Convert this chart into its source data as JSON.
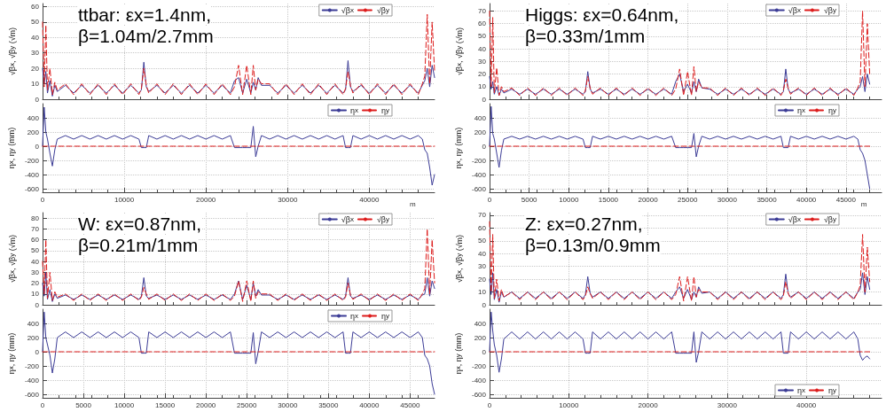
{
  "chart_data": [
    {
      "type": "line",
      "annotations": [
        "ttbar: εx=1.4nm,",
        "β=1.04m/2.7mm"
      ],
      "ylabel": "√β$_{x}$, √β$_{y}$ (√m)",
      "xlim": [
        0,
        48000
      ],
      "xticks": [
        0,
        10000,
        20000,
        30000,
        40000
      ],
      "ylim": [
        0,
        62
      ],
      "yticks": [
        0,
        10,
        20,
        30,
        40,
        50,
        60
      ],
      "tick_labels": "y",
      "grid": true,
      "legend": "top right",
      "marker": "none",
      "x": [
        0,
        200,
        400,
        600,
        900,
        1200,
        1500,
        1800,
        2800,
        3800,
        4800,
        5800,
        6800,
        7800,
        8800,
        9800,
        10800,
        11800,
        12100,
        12400,
        12700,
        13000,
        14000,
        15000,
        16000,
        17000,
        18000,
        19000,
        20000,
        21000,
        22000,
        23000,
        23500,
        24000,
        24500,
        25000,
        25500,
        25800,
        26100,
        26400,
        26800,
        27800,
        28800,
        29800,
        30800,
        31800,
        32800,
        33800,
        34800,
        35800,
        36800,
        37100,
        37400,
        37700,
        38000,
        39000,
        40000,
        41000,
        42000,
        43000,
        44000,
        45000,
        46000,
        46500,
        46800,
        47100,
        47400,
        47700,
        48000
      ],
      "series": [
        {
          "name": "√β$_{x}$",
          "color": "#3c3c96",
          "line_style": "solid",
          "values": [
            20,
            10,
            18,
            4,
            12,
            2,
            9,
            5,
            9,
            4,
            9,
            4,
            9,
            4,
            9,
            4,
            9,
            4,
            6,
            24,
            8,
            5,
            9,
            4,
            9,
            4,
            9,
            4,
            9,
            4,
            9,
            4,
            12,
            14,
            4,
            13,
            4,
            11,
            6,
            14,
            9,
            9,
            4,
            9,
            4,
            9,
            4,
            9,
            4,
            9,
            4,
            6,
            25,
            8,
            5,
            9,
            4,
            9,
            4,
            9,
            4,
            9,
            4,
            9,
            12,
            20,
            8,
            22,
            14
          ]
        },
        {
          "name": "√β$_{y}$",
          "color": "#dd1c1c",
          "line_style": "dashed",
          "values": [
            50,
            8,
            48,
            6,
            20,
            3,
            11,
            6,
            10,
            3,
            10,
            3,
            10,
            3,
            10,
            3,
            10,
            3,
            7,
            20,
            9,
            4,
            10,
            3,
            10,
            3,
            10,
            3,
            10,
            3,
            10,
            3,
            8,
            22,
            3,
            22,
            3,
            22,
            6,
            13,
            10,
            10,
            3,
            10,
            3,
            10,
            3,
            10,
            3,
            10,
            3,
            7,
            18,
            9,
            4,
            10,
            3,
            10,
            3,
            10,
            3,
            10,
            3,
            10,
            15,
            55,
            10,
            50,
            18
          ]
        }
      ]
    },
    {
      "type": "line",
      "xlabel": "m",
      "ylabel": "η$_{x}$, η$_{y}$ (mm)",
      "xlim": [
        0,
        48000
      ],
      "xticks": [
        0,
        10000,
        20000,
        30000,
        40000
      ],
      "ylim": [
        -650,
        600
      ],
      "yticks": [
        -600,
        -400,
        -200,
        0,
        200,
        400
      ],
      "grid": true,
      "legend": "top right",
      "marker": "none",
      "x": [
        0,
        200,
        400,
        600,
        900,
        1200,
        1500,
        1800,
        2800,
        3800,
        4800,
        5800,
        6800,
        7800,
        8800,
        9800,
        10800,
        11800,
        12100,
        12400,
        12700,
        13000,
        14000,
        15000,
        16000,
        17000,
        18000,
        19000,
        20000,
        21000,
        22000,
        23000,
        23500,
        24000,
        24500,
        25000,
        25500,
        25800,
        26100,
        26400,
        26800,
        27800,
        28800,
        29800,
        30800,
        31800,
        32800,
        33800,
        34800,
        35800,
        36800,
        37100,
        37400,
        37700,
        38000,
        39000,
        40000,
        41000,
        42000,
        43000,
        44000,
        45000,
        46000,
        46500,
        46800,
        47100,
        47400,
        47700,
        48000
      ],
      "series": [
        {
          "name": "η$_{x}$",
          "color": "#3c3c96",
          "line_style": "solid",
          "values": [
            0,
            550,
            200,
            100,
            -100,
            -280,
            -50,
            100,
            150,
            100,
            150,
            100,
            150,
            100,
            150,
            100,
            150,
            100,
            -20,
            -20,
            -20,
            150,
            100,
            150,
            100,
            150,
            100,
            150,
            100,
            150,
            100,
            150,
            -20,
            -20,
            -20,
            -20,
            -20,
            280,
            -150,
            0,
            150,
            100,
            150,
            100,
            150,
            100,
            150,
            100,
            150,
            100,
            150,
            -20,
            -20,
            -20,
            150,
            100,
            150,
            100,
            150,
            100,
            150,
            100,
            150,
            100,
            -50,
            -100,
            -300,
            -550,
            -400
          ]
        },
        {
          "name": "η$_{y}$",
          "color": "#dd1c1c",
          "line_style": "dashed",
          "values": [
            0,
            0,
            0,
            0,
            0,
            0,
            0,
            0,
            0,
            0,
            0,
            0,
            0,
            0,
            0,
            0,
            0,
            0,
            0,
            0,
            0,
            0,
            0,
            0,
            0,
            0,
            0,
            0,
            0,
            0,
            0,
            0,
            0,
            0,
            0,
            0,
            0,
            0,
            0,
            0,
            0,
            0,
            0,
            0,
            0,
            0,
            0,
            0,
            0,
            0,
            0,
            0,
            0,
            0,
            0,
            0,
            0,
            0,
            0,
            0,
            0,
            0,
            0,
            0,
            0,
            0,
            0,
            0,
            0
          ]
        }
      ]
    },
    {
      "type": "line",
      "annotations": [
        "Higgs: εx=0.64nm,",
        "β=0.33m/1mm"
      ],
      "ylabel": "√β$_{x}$, √β$_{y}$ (√m)",
      "xlim": [
        0,
        49500
      ],
      "xticks": [
        0,
        5000,
        10000,
        15000,
        20000,
        25000,
        30000,
        35000,
        40000,
        45000
      ],
      "ylim": [
        0,
        76
      ],
      "yticks": [
        0,
        10,
        20,
        30,
        40,
        50,
        60,
        70
      ],
      "tick_labels": "y",
      "grid": true,
      "legend": "top right",
      "marker": "none",
      "x": [
        0,
        200,
        400,
        600,
        900,
        1200,
        1500,
        1800,
        2800,
        3800,
        4800,
        5800,
        6800,
        7800,
        8800,
        9800,
        10800,
        11800,
        12100,
        12400,
        12700,
        13000,
        14000,
        15000,
        16000,
        17000,
        18000,
        19000,
        20000,
        21000,
        22000,
        23000,
        23500,
        24000,
        24500,
        25000,
        25500,
        25800,
        26100,
        26400,
        26800,
        27800,
        28800,
        29800,
        30800,
        31800,
        32800,
        33800,
        34800,
        35800,
        36800,
        37100,
        37400,
        37700,
        38000,
        39000,
        40000,
        41000,
        42000,
        43000,
        44000,
        45000,
        46000,
        46500,
        46800,
        47100,
        47400,
        47700,
        48000
      ],
      "series": [
        {
          "name": "√β$_{x}$",
          "color": "#3c3c96",
          "line_style": "solid",
          "values": [
            18,
            8,
            14,
            4,
            10,
            3,
            8,
            5,
            8,
            4,
            8,
            4,
            8,
            4,
            8,
            4,
            8,
            4,
            6,
            22,
            8,
            5,
            8,
            4,
            8,
            4,
            8,
            4,
            8,
            4,
            8,
            4,
            14,
            20,
            6,
            12,
            5,
            14,
            6,
            16,
            9,
            8,
            4,
            8,
            4,
            8,
            4,
            8,
            4,
            8,
            4,
            6,
            24,
            8,
            5,
            8,
            4,
            8,
            4,
            8,
            4,
            8,
            4,
            8,
            10,
            18,
            6,
            20,
            12
          ]
        },
        {
          "name": "√β$_{y}$",
          "color": "#dd1c1c",
          "line_style": "dashed",
          "values": [
            70,
            10,
            65,
            5,
            25,
            3,
            10,
            6,
            9,
            3,
            9,
            3,
            9,
            3,
            9,
            3,
            9,
            3,
            7,
            18,
            9,
            4,
            9,
            3,
            9,
            3,
            9,
            3,
            9,
            3,
            9,
            3,
            8,
            24,
            3,
            22,
            3,
            26,
            6,
            14,
            9,
            9,
            3,
            9,
            3,
            9,
            3,
            9,
            3,
            9,
            3,
            7,
            16,
            9,
            4,
            9,
            3,
            9,
            3,
            9,
            3,
            9,
            3,
            9,
            14,
            70,
            10,
            60,
            20
          ]
        }
      ]
    },
    {
      "type": "line",
      "xlabel": "m",
      "ylabel": "η$_{x}$, η$_{y}$ (mm)",
      "xlim": [
        0,
        49500
      ],
      "xticks": [
        0,
        5000,
        10000,
        15000,
        20000,
        25000,
        30000,
        35000,
        40000,
        45000
      ],
      "ylim": [
        -650,
        600
      ],
      "yticks": [
        -600,
        -400,
        -200,
        0,
        200,
        400
      ],
      "grid": true,
      "legend": "top right",
      "marker": "none",
      "x": [
        0,
        200,
        400,
        600,
        900,
        1200,
        1500,
        1800,
        2800,
        3800,
        4800,
        5800,
        6800,
        7800,
        8800,
        9800,
        10800,
        11800,
        12100,
        12400,
        12700,
        13000,
        14000,
        15000,
        16000,
        17000,
        18000,
        19000,
        20000,
        21000,
        22000,
        23000,
        23500,
        24000,
        24500,
        25000,
        25500,
        25800,
        26100,
        26400,
        26800,
        27800,
        28800,
        29800,
        30800,
        31800,
        32800,
        33800,
        34800,
        35800,
        36800,
        37100,
        37400,
        37700,
        38000,
        39000,
        40000,
        41000,
        42000,
        43000,
        44000,
        45000,
        46000,
        46500,
        46800,
        47100,
        47400,
        47700,
        48000
      ],
      "series": [
        {
          "name": "η$_{x}$",
          "color": "#3c3c96",
          "line_style": "solid",
          "values": [
            0,
            560,
            180,
            100,
            -100,
            -300,
            -60,
            100,
            140,
            100,
            140,
            100,
            140,
            100,
            140,
            100,
            140,
            100,
            -20,
            -20,
            -20,
            140,
            100,
            140,
            100,
            140,
            100,
            140,
            100,
            140,
            100,
            140,
            -20,
            -20,
            -20,
            -20,
            -20,
            180,
            -150,
            0,
            140,
            100,
            140,
            100,
            140,
            100,
            140,
            100,
            140,
            100,
            140,
            -20,
            -20,
            -20,
            140,
            100,
            140,
            100,
            140,
            100,
            140,
            100,
            140,
            100,
            -50,
            -100,
            -200,
            -400,
            -600
          ]
        },
        {
          "name": "η$_{y}$",
          "color": "#dd1c1c",
          "line_style": "dashed",
          "values": [
            0,
            0,
            0,
            0,
            0,
            0,
            0,
            0,
            0,
            0,
            0,
            0,
            0,
            0,
            0,
            0,
            0,
            0,
            0,
            0,
            0,
            0,
            0,
            0,
            0,
            0,
            0,
            0,
            0,
            0,
            0,
            0,
            0,
            0,
            0,
            0,
            0,
            0,
            0,
            0,
            0,
            0,
            0,
            0,
            0,
            0,
            0,
            0,
            0,
            0,
            0,
            0,
            0,
            0,
            0,
            0,
            0,
            0,
            0,
            0,
            0,
            0,
            0,
            0,
            0,
            0,
            0,
            0,
            0
          ]
        }
      ]
    },
    {
      "type": "line",
      "annotations": [
        "W: εx=0.87nm,",
        "β=0.21m/1mm"
      ],
      "ylabel": "√β$_{x}$, √β$_{y}$ (√m)",
      "xlim": [
        0,
        48000
      ],
      "xticks": [
        0,
        5000,
        10000,
        15000,
        20000,
        25000,
        30000,
        35000,
        40000,
        45000
      ],
      "ylim": [
        0,
        85
      ],
      "yticks": [
        0,
        10,
        20,
        30,
        40,
        50,
        60,
        70,
        80
      ],
      "tick_labels": "y",
      "grid": true,
      "legend": "top right",
      "marker": "none",
      "x": [
        0,
        200,
        400,
        600,
        900,
        1200,
        1500,
        1800,
        2800,
        3800,
        4800,
        5800,
        6800,
        7800,
        8800,
        9800,
        10800,
        11800,
        12100,
        12400,
        12700,
        13000,
        14000,
        15000,
        16000,
        17000,
        18000,
        19000,
        20000,
        21000,
        22000,
        23000,
        23500,
        24000,
        24500,
        25000,
        25500,
        25800,
        26100,
        26400,
        26800,
        27800,
        28800,
        29800,
        30800,
        31800,
        32800,
        33800,
        34800,
        35800,
        36800,
        37100,
        37400,
        37700,
        38000,
        39000,
        40000,
        41000,
        42000,
        43000,
        44000,
        45000,
        46000,
        46500,
        46800,
        47100,
        47400,
        47700,
        48000
      ],
      "series": [
        {
          "name": "√β$_{x}$",
          "color": "#3c3c96",
          "line_style": "solid",
          "values": [
            20,
            8,
            30,
            5,
            14,
            3,
            10,
            6,
            9,
            5,
            9,
            5,
            9,
            5,
            9,
            5,
            9,
            5,
            8,
            25,
            8,
            6,
            9,
            5,
            9,
            5,
            9,
            5,
            9,
            5,
            9,
            5,
            10,
            22,
            5,
            18,
            5,
            20,
            8,
            14,
            9,
            9,
            5,
            9,
            5,
            9,
            5,
            9,
            5,
            9,
            5,
            8,
            25,
            8,
            6,
            9,
            5,
            9,
            5,
            9,
            5,
            9,
            5,
            9,
            10,
            25,
            8,
            22,
            15
          ]
        },
        {
          "name": "√β$_{y}$",
          "color": "#dd1c1c",
          "line_style": "dashed",
          "values": [
            40,
            10,
            60,
            6,
            30,
            4,
            12,
            7,
            10,
            4,
            10,
            4,
            10,
            4,
            10,
            4,
            10,
            4,
            7,
            16,
            10,
            5,
            10,
            4,
            10,
            4,
            10,
            4,
            10,
            4,
            10,
            4,
            8,
            22,
            3,
            22,
            3,
            22,
            6,
            12,
            10,
            10,
            4,
            10,
            4,
            10,
            4,
            10,
            4,
            10,
            4,
            7,
            20,
            9,
            5,
            10,
            4,
            10,
            4,
            10,
            4,
            10,
            4,
            10,
            15,
            70,
            10,
            60,
            20
          ]
        }
      ]
    },
    {
      "type": "line",
      "ylabel": "η$_{x}$, η$_{y}$ (mm)",
      "xlim": [
        0,
        48000
      ],
      "xticks": [
        0,
        5000,
        10000,
        15000,
        20000,
        25000,
        30000,
        35000,
        40000,
        45000
      ],
      "ylim": [
        -650,
        600
      ],
      "yticks": [
        -600,
        -400,
        -200,
        0,
        200,
        400
      ],
      "grid": true,
      "legend": "top right",
      "marker": "none",
      "x": [
        0,
        200,
        400,
        600,
        900,
        1200,
        1500,
        1800,
        2800,
        3800,
        4800,
        5800,
        6800,
        7800,
        8800,
        9800,
        10800,
        11800,
        12100,
        12400,
        12700,
        13000,
        14000,
        15000,
        16000,
        17000,
        18000,
        19000,
        20000,
        21000,
        22000,
        23000,
        23500,
        24000,
        24500,
        25000,
        25500,
        25800,
        26100,
        26400,
        26800,
        27800,
        28800,
        29800,
        30800,
        31800,
        32800,
        33800,
        34800,
        35800,
        36800,
        37100,
        37400,
        37700,
        38000,
        39000,
        40000,
        41000,
        42000,
        43000,
        44000,
        45000,
        46000,
        46500,
        46800,
        47100,
        47400,
        47700,
        48000
      ],
      "series": [
        {
          "name": "η$_{x}$",
          "color": "#3c3c96",
          "line_style": "solid",
          "values": [
            0,
            560,
            200,
            100,
            -50,
            -300,
            -100,
            200,
            280,
            200,
            280,
            200,
            280,
            200,
            280,
            200,
            280,
            200,
            -20,
            -20,
            -20,
            280,
            200,
            280,
            200,
            280,
            200,
            280,
            200,
            280,
            200,
            280,
            -20,
            -20,
            -20,
            -20,
            -20,
            270,
            -170,
            0,
            280,
            200,
            280,
            200,
            280,
            200,
            280,
            200,
            280,
            200,
            280,
            -20,
            -20,
            -20,
            280,
            200,
            280,
            200,
            280,
            200,
            280,
            200,
            280,
            200,
            -50,
            -100,
            -200,
            -450,
            -600
          ]
        },
        {
          "name": "η$_{y}$",
          "color": "#dd1c1c",
          "line_style": "dashed",
          "values": [
            0,
            0,
            0,
            0,
            0,
            0,
            0,
            0,
            0,
            0,
            0,
            0,
            0,
            0,
            0,
            0,
            0,
            0,
            0,
            0,
            0,
            0,
            0,
            0,
            0,
            0,
            0,
            0,
            0,
            0,
            0,
            0,
            0,
            0,
            0,
            0,
            0,
            0,
            0,
            0,
            0,
            0,
            0,
            0,
            0,
            0,
            0,
            0,
            0,
            0,
            0,
            0,
            0,
            0,
            0,
            0,
            0,
            0,
            0,
            0,
            0,
            0,
            0,
            0,
            0,
            0,
            0,
            0,
            0
          ]
        }
      ]
    },
    {
      "type": "line",
      "annotations": [
        "Z: εx=0.27nm,",
        "β=0.13m/0.9mm"
      ],
      "ylabel": "√β$_{x}$, √β$_{y}$ (√m)",
      "xlim": [
        0,
        49500
      ],
      "xticks": [
        0,
        10000,
        20000,
        30000,
        40000
      ],
      "ylim": [
        0,
        72
      ],
      "yticks": [
        0,
        10,
        20,
        30,
        40,
        50,
        60,
        70
      ],
      "tick_labels": "y",
      "grid": true,
      "legend": "top right",
      "marker": "none",
      "x": [
        0,
        200,
        400,
        600,
        900,
        1200,
        1500,
        1800,
        2800,
        3800,
        4800,
        5800,
        6800,
        7800,
        8800,
        9800,
        10800,
        11800,
        12100,
        12400,
        12700,
        13000,
        14000,
        15000,
        16000,
        17000,
        18000,
        19000,
        20000,
        21000,
        22000,
        23000,
        23500,
        24000,
        24500,
        25000,
        25500,
        25800,
        26100,
        26400,
        26800,
        27800,
        28800,
        29800,
        30800,
        31800,
        32800,
        33800,
        34800,
        35800,
        36800,
        37100,
        37400,
        37700,
        38000,
        39000,
        40000,
        41000,
        42000,
        43000,
        44000,
        45000,
        46000,
        46500,
        46800,
        47100,
        47400,
        47700,
        48000
      ],
      "series": [
        {
          "name": "√β$_{x}$",
          "color": "#3c3c96",
          "line_style": "solid",
          "values": [
            20,
            8,
            25,
            4,
            12,
            2,
            10,
            6,
            10,
            5,
            10,
            5,
            10,
            5,
            10,
            5,
            10,
            5,
            8,
            22,
            9,
            6,
            10,
            5,
            10,
            5,
            10,
            5,
            10,
            5,
            10,
            5,
            10,
            14,
            5,
            12,
            4,
            10,
            6,
            14,
            9,
            10,
            5,
            10,
            5,
            10,
            5,
            10,
            5,
            10,
            5,
            8,
            24,
            9,
            6,
            10,
            5,
            10,
            5,
            10,
            5,
            10,
            5,
            10,
            12,
            25,
            8,
            22,
            12
          ]
        },
        {
          "name": "√β$_{y}$",
          "color": "#dd1c1c",
          "line_style": "dashed",
          "values": [
            65,
            10,
            55,
            5,
            20,
            3,
            12,
            6,
            10,
            4,
            10,
            4,
            10,
            4,
            10,
            4,
            10,
            4,
            7,
            14,
            9,
            5,
            10,
            4,
            10,
            4,
            10,
            4,
            10,
            4,
            10,
            4,
            8,
            22,
            3,
            22,
            3,
            22,
            6,
            12,
            10,
            10,
            4,
            10,
            4,
            10,
            4,
            10,
            4,
            10,
            4,
            7,
            18,
            9,
            5,
            10,
            4,
            10,
            4,
            10,
            4,
            10,
            4,
            10,
            15,
            55,
            10,
            45,
            18
          ]
        }
      ]
    },
    {
      "type": "line",
      "ylabel": "η$_{x}$, η$_{y}$ (mm)",
      "xlim": [
        0,
        49500
      ],
      "xticks": [
        0,
        10000,
        20000,
        30000,
        40000
      ],
      "ylim": [
        -650,
        600
      ],
      "yticks": [
        -600,
        -400,
        -200,
        0,
        200,
        400
      ],
      "grid": true,
      "legend": "bottom right",
      "marker": "none",
      "x": [
        0,
        200,
        400,
        600,
        900,
        1200,
        1500,
        1800,
        2800,
        3800,
        4800,
        5800,
        6800,
        7800,
        8800,
        9800,
        10800,
        11800,
        12100,
        12400,
        12700,
        13000,
        14000,
        15000,
        16000,
        17000,
        18000,
        19000,
        20000,
        21000,
        22000,
        23000,
        23500,
        24000,
        24500,
        25000,
        25500,
        25800,
        26100,
        26400,
        26800,
        27800,
        28800,
        29800,
        30800,
        31800,
        32800,
        33800,
        34800,
        35800,
        36800,
        37100,
        37400,
        37700,
        38000,
        39000,
        40000,
        41000,
        42000,
        43000,
        44000,
        45000,
        46000,
        46500,
        46800,
        47100,
        47400,
        47700,
        48000
      ],
      "series": [
        {
          "name": "η$_{x}$",
          "color": "#3c3c96",
          "line_style": "solid",
          "values": [
            0,
            560,
            300,
            100,
            -50,
            -290,
            -100,
            180,
            280,
            180,
            280,
            180,
            280,
            180,
            280,
            180,
            280,
            180,
            -20,
            -20,
            -20,
            280,
            180,
            280,
            180,
            280,
            180,
            280,
            180,
            280,
            180,
            280,
            -20,
            -20,
            -20,
            -20,
            -20,
            280,
            -150,
            0,
            280,
            180,
            280,
            180,
            280,
            180,
            280,
            180,
            280,
            180,
            280,
            -20,
            -20,
            -20,
            280,
            180,
            280,
            180,
            280,
            180,
            280,
            180,
            280,
            180,
            -50,
            -120,
            -80,
            -60,
            -100
          ]
        },
        {
          "name": "η$_{y}$",
          "color": "#dd1c1c",
          "line_style": "dashed",
          "values": [
            0,
            0,
            0,
            0,
            0,
            0,
            0,
            0,
            0,
            0,
            0,
            0,
            0,
            0,
            0,
            0,
            0,
            0,
            0,
            0,
            0,
            0,
            0,
            0,
            0,
            0,
            0,
            0,
            0,
            0,
            0,
            0,
            0,
            0,
            0,
            0,
            0,
            0,
            0,
            0,
            0,
            0,
            0,
            0,
            0,
            0,
            0,
            0,
            0,
            0,
            0,
            0,
            0,
            0,
            0,
            0,
            0,
            0,
            0,
            0,
            0,
            0,
            0,
            0,
            0,
            0,
            0,
            0,
            0
          ]
        }
      ]
    }
  ]
}
